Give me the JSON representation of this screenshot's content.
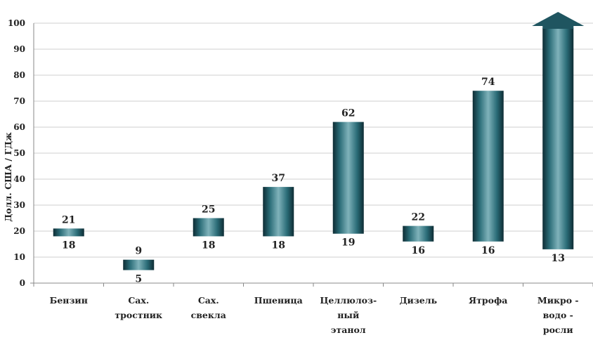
{
  "chart_data": {
    "type": "bar",
    "variant": "floating-range",
    "ylabel": "Долл. США / ГДж",
    "ylim": [
      0,
      100
    ],
    "yticks": [
      0,
      10,
      20,
      30,
      40,
      50,
      60,
      70,
      80,
      90,
      100
    ],
    "grid": true,
    "categories": [
      [
        "Бензин"
      ],
      [
        "Сах.",
        "тростник"
      ],
      [
        "Сах.",
        "свекла"
      ],
      [
        "Пшеница"
      ],
      [
        "Целлюлоз-",
        "ный",
        "этанол"
      ],
      [
        "Дизель"
      ],
      [
        "Ятрофа"
      ],
      [
        "Микро -",
        "водо -",
        "росли"
      ]
    ],
    "low": [
      18,
      5,
      18,
      18,
      19,
      16,
      16,
      13
    ],
    "high": [
      21,
      9,
      25,
      37,
      62,
      22,
      74,
      null
    ],
    "high_labels": [
      "21",
      "9",
      "25",
      "37",
      "62",
      "22",
      "74",
      ""
    ],
    "low_labels": [
      "18",
      "5",
      "18",
      "18",
      "19",
      "16",
      "16",
      "13"
    ],
    "last_bar_exceeds_axis": true,
    "colors": {
      "bar_edge": "#0e2c34",
      "bar_mid": "#2f7782",
      "bar_light": "#7fb2ba",
      "grid": "#cfcfcf",
      "axis": "#888888"
    }
  }
}
